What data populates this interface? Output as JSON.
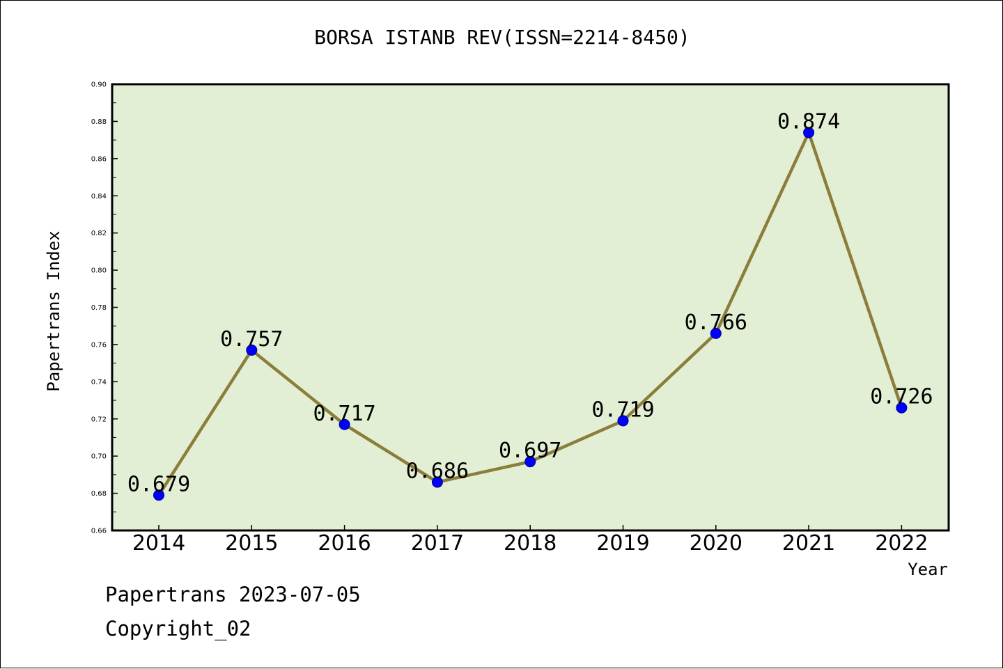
{
  "chart_data": {
    "type": "line",
    "title": "BORSA ISTANB REV(ISSN=2214-8450)",
    "xlabel": "Year",
    "ylabel": "Papertrans Index",
    "categories": [
      "2014",
      "2015",
      "2016",
      "2017",
      "2018",
      "2019",
      "2020",
      "2021",
      "2022"
    ],
    "values": [
      0.679,
      0.757,
      0.717,
      0.686,
      0.697,
      0.719,
      0.766,
      0.874,
      0.726
    ],
    "data_labels": [
      "0.679",
      "0.757",
      "0.717",
      "0.686",
      "0.697",
      "0.719",
      "0.766",
      "0.874",
      "0.726"
    ],
    "ylim": [
      0.66,
      0.9
    ],
    "yticks": [
      "0.66",
      "0.68",
      "0.70",
      "0.72",
      "0.74",
      "0.76",
      "0.78",
      "0.80",
      "0.82",
      "0.84",
      "0.86",
      "0.88",
      "0.90"
    ],
    "grid": false,
    "legend": "none",
    "colors": {
      "plot_background": "#e2efd4",
      "line": "#8b7d3a",
      "marker": "#0000ff"
    }
  },
  "footer": {
    "date": "Papertrans 2023-07-05",
    "copyright": "Copyright_02"
  }
}
